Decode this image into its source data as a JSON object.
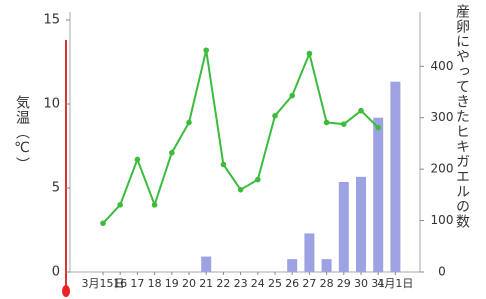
{
  "chart_data": {
    "type": "bar_line",
    "y_label": "気温（℃）",
    "y2_label": "産卵にやってきたヒキガエルの数",
    "categories": [
      "3月15日",
      "16",
      "17",
      "18",
      "19",
      "20",
      "21",
      "22",
      "23",
      "24",
      "25",
      "26",
      "27",
      "28",
      "29",
      "30",
      "31",
      "4月1日"
    ],
    "series": [
      {
        "type": "bar",
        "axis": "y2",
        "color": "#9da2e3",
        "values": [
          0,
          0,
          0,
          0,
          0,
          0,
          30,
          0,
          0,
          0,
          0,
          25,
          75,
          25,
          175,
          185,
          300,
          370
        ]
      },
      {
        "type": "line",
        "axis": "y",
        "color": "#3cbb3c",
        "values": [
          2.9,
          4.0,
          6.7,
          4.0,
          7.1,
          8.9,
          13.2,
          6.4,
          4.9,
          5.5,
          9.3,
          10.5,
          13.0,
          8.9,
          8.8,
          9.6,
          8.6,
          null
        ]
      }
    ],
    "ylim": [
      0,
      15
    ],
    "yticks": [
      0,
      5,
      10,
      15
    ],
    "y2lim": [
      0,
      490
    ],
    "y2ticks": [
      0,
      100,
      200,
      300,
      400
    ]
  }
}
